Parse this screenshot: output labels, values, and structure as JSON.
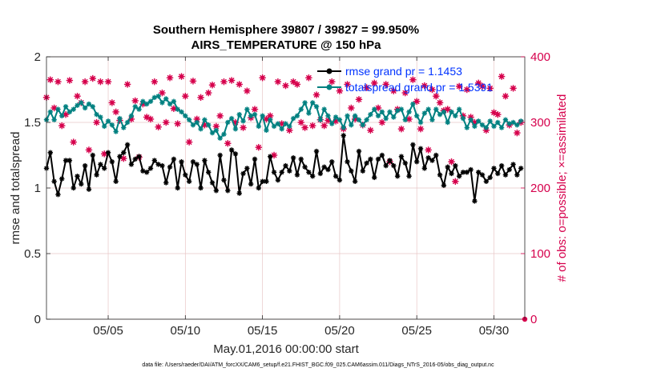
{
  "figure": {
    "title_line1": "Southern Hemisphere 39807 / 39827 = 99.950%",
    "title_line2": "AIRS_TEMPERATURE @ 150 hPa",
    "footnote": "data file: /Users/raeder/DAI/ATM_forcXX/CAM6_setup/f.e21.FHIST_BGC.f09_025.CAM6assim.011/Diags_NTrS_2016-05/obs_diag_output.nc"
  },
  "colors": {
    "rmse": "#000000",
    "spread": "#008080",
    "obs": "#d6004c",
    "legend_text": "#0033ff",
    "grid": "#e8c6c6"
  },
  "chart_data": {
    "type": "line",
    "title": "Southern Hemisphere 39807 / 39827 = 99.950%\nAIRS_TEMPERATURE @ 150 hPa",
    "xlabel": "May.01,2016 00:00:00 start",
    "ylabel": "rmse and totalspread",
    "y2label": "# of obs: o=possible; ×=assimilated",
    "xlim": [
      1,
      32
    ],
    "ylim": [
      0,
      2
    ],
    "y2lim": [
      0,
      400
    ],
    "x_ticks": [
      5,
      10,
      15,
      20,
      25,
      30
    ],
    "x_tick_labels": [
      "05/05",
      "05/10",
      "05/15",
      "05/20",
      "05/25",
      "05/30"
    ],
    "y_ticks": [
      0,
      0.5,
      1,
      1.5,
      2
    ],
    "y_tick_labels": [
      "0",
      "0.5",
      "1",
      "1.5",
      "2"
    ],
    "y2_ticks": [
      0,
      100,
      200,
      300,
      400
    ],
    "y2_tick_labels": [
      "0",
      "100",
      "200",
      "300",
      "400"
    ],
    "grid": true,
    "legend_placement": "top-right",
    "x_step_days": 0.25,
    "series": [
      {
        "name": "rmse grand pr = 1.1453",
        "axis": "left",
        "marker": "asterisk",
        "values": [
          1.15,
          1.27,
          1.05,
          0.95,
          1.07,
          1.21,
          1.21,
          1.0,
          1.09,
          1.03,
          1.17,
          0.99,
          1.25,
          1.1,
          1.18,
          1.15,
          1.27,
          1.2,
          1.05,
          1.24,
          1.27,
          1.33,
          1.18,
          1.22,
          1.24,
          1.13,
          1.12,
          1.15,
          1.21,
          1.18,
          1.17,
          1.04,
          1.16,
          1.22,
          1.0,
          1.2,
          1.1,
          1.05,
          1.2,
          1.18,
          1.0,
          1.21,
          1.12,
          1.04,
          0.98,
          1.25,
          1.06,
          0.98,
          1.29,
          1.26,
          0.96,
          1.11,
          1.15,
          1.03,
          1.22,
          1.0,
          1.05,
          1.05,
          1.24,
          1.12,
          1.06,
          1.12,
          1.17,
          1.13,
          1.23,
          1.1,
          1.22,
          1.16,
          1.12,
          1.09,
          1.28,
          1.11,
          1.16,
          1.14,
          1.2,
          1.09,
          1.06,
          1.4,
          1.2,
          1.13,
          1.05,
          1.28,
          1.13,
          1.19,
          1.22,
          1.08,
          1.22,
          1.25,
          1.17,
          1.21,
          1.17,
          1.09,
          1.24,
          1.19,
          1.09,
          1.33,
          1.2,
          1.3,
          1.15,
          1.23,
          1.21,
          1.25,
          1.1,
          1.02,
          1.16,
          1.11,
          1.17,
          1.09,
          1.12,
          1.12,
          1.14,
          0.9,
          1.12,
          1.1,
          1.05,
          1.08,
          1.15,
          1.11,
          1.17,
          1.1,
          1.14,
          1.18,
          1.1,
          1.15
        ]
      },
      {
        "name": "totalspread grand pr = 1.5391",
        "axis": "left",
        "marker": "asterisk",
        "values": [
          1.52,
          1.58,
          1.52,
          1.6,
          1.55,
          1.62,
          1.58,
          1.6,
          1.63,
          1.65,
          1.61,
          1.64,
          1.62,
          1.56,
          1.54,
          1.47,
          1.51,
          1.48,
          1.43,
          1.53,
          1.46,
          1.5,
          1.55,
          1.62,
          1.6,
          1.66,
          1.64,
          1.66,
          1.69,
          1.7,
          1.65,
          1.68,
          1.64,
          1.66,
          1.6,
          1.58,
          1.55,
          1.52,
          1.48,
          1.5,
          1.45,
          1.52,
          1.48,
          1.42,
          1.44,
          1.38,
          1.41,
          1.5,
          1.53,
          1.45,
          1.56,
          1.51,
          1.6,
          1.55,
          1.56,
          1.47,
          1.55,
          1.44,
          1.52,
          1.47,
          1.49,
          1.45,
          1.49,
          1.47,
          1.53,
          1.55,
          1.6,
          1.65,
          1.57,
          1.65,
          1.62,
          1.52,
          1.6,
          1.55,
          1.49,
          1.54,
          1.52,
          1.46,
          1.55,
          1.48,
          1.55,
          1.52,
          1.48,
          1.52,
          1.56,
          1.6,
          1.55,
          1.58,
          1.53,
          1.58,
          1.54,
          1.59,
          1.6,
          1.52,
          1.58,
          1.64,
          1.55,
          1.5,
          1.57,
          1.6,
          1.52,
          1.6,
          1.56,
          1.58,
          1.5,
          1.58,
          1.55,
          1.6,
          1.53,
          1.46,
          1.52,
          1.47,
          1.51,
          1.48,
          1.46,
          1.51,
          1.47,
          1.5,
          1.46,
          1.52,
          1.49,
          1.5,
          1.48,
          1.51
        ]
      },
      {
        "name": "obs possible / assimilated",
        "axis": "right",
        "marker": "circle-cross",
        "values": [
          338,
          365,
          322,
          362,
          295,
          312,
          364,
          270,
          340,
          330,
          362,
          258,
          367,
          300,
          362,
          252,
          362,
          330,
          316,
          303,
          245,
          358,
          305,
          333,
          247,
          328,
          308,
          305,
          362,
          293,
          345,
          300,
          368,
          321,
          298,
          370,
          340,
          270,
          363,
          305,
          338,
          296,
          345,
          357,
          294,
          310,
          362,
          268,
          364,
          300,
          358,
          292,
          348,
          307,
          320,
          262,
          368,
          305,
          310,
          250,
          362,
          298,
          356,
          288,
          362,
          358,
          300,
          292,
          368,
          295,
          342,
          304,
          295,
          303,
          362,
          302,
          348,
          290,
          358,
          322,
          305,
          335,
          296,
          353,
          288,
          360,
          322,
          300,
          358,
          240,
          348,
          320,
          290,
          345,
          305,
          365,
          332,
          290,
          356,
          258,
          350,
          340,
          330,
          318,
          320,
          240,
          210,
          355,
          310,
          350,
          308,
          300,
          360,
          355,
          288,
          352,
          315,
          312,
          370,
          340,
          296,
          352,
          284,
          300
        ]
      }
    ]
  }
}
